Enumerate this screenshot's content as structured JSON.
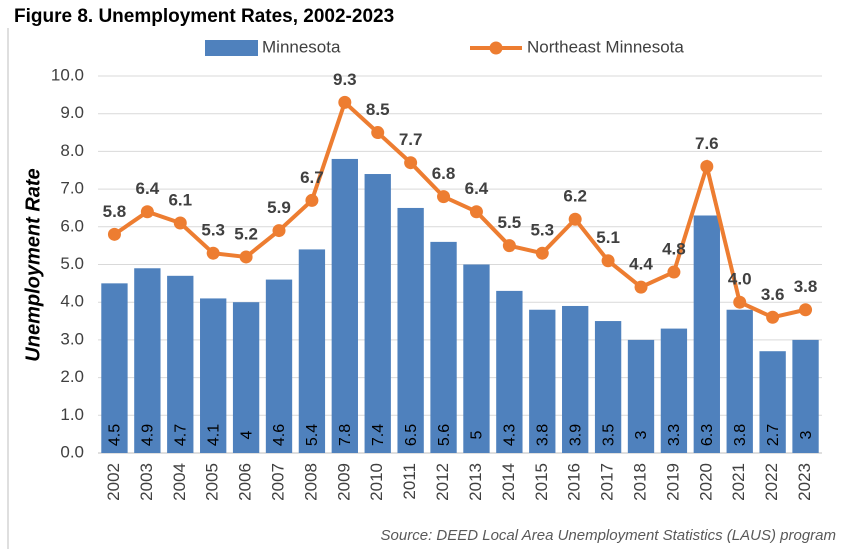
{
  "chart_data": {
    "type": "bar_line",
    "title": "Figure 8. Unemployment Rates, 2002-2023",
    "y_label": "Unemployment Rate",
    "source": "Source: DEED Local Area Unemployment Statistics (LAUS) program",
    "categories": [
      "2002",
      "2003",
      "2004",
      "2005",
      "2006",
      "2007",
      "2008",
      "2009",
      "2010",
      "2011",
      "2012",
      "2013",
      "2014",
      "2015",
      "2016",
      "2017",
      "2018",
      "2019",
      "2020",
      "2021",
      "2022",
      "2023"
    ],
    "series": [
      {
        "name": "Minnesota",
        "type": "bar",
        "color": "#4f81bd",
        "values": [
          4.5,
          4.9,
          4.7,
          4.1,
          4,
          4.6,
          5.4,
          7.8,
          7.4,
          6.5,
          5.6,
          5,
          4.3,
          3.8,
          3.9,
          3.5,
          3,
          3.3,
          6.3,
          3.8,
          2.7,
          3
        ]
      },
      {
        "name": "Northeast Minnesota",
        "type": "line",
        "color": "#ed7d31",
        "label_color": "#c55a11",
        "values": [
          5.8,
          6.4,
          6.1,
          5.3,
          5.2,
          5.9,
          6.7,
          9.3,
          8.5,
          7.7,
          6.8,
          6.4,
          5.5,
          5.3,
          6.2,
          5.1,
          4.4,
          4.8,
          7.6,
          4.0,
          3.6,
          3.8
        ],
        "value_labels": [
          "5.8",
          "6.4",
          "6.1",
          "5.3",
          "5.2",
          "5.9",
          "6.7",
          "9.3",
          "8.5",
          "7.7",
          "6.8",
          "6.4",
          "5.5",
          "5.3",
          "6.2",
          "5.1",
          "4.4",
          "4.8",
          "7.6",
          "4.0",
          "3.6",
          "3.8"
        ]
      }
    ],
    "ylim": [
      0,
      10
    ],
    "yticks": [
      {
        "value": 0,
        "label": "0.0"
      },
      {
        "value": 1,
        "label": "1.0"
      },
      {
        "value": 2,
        "label": "2.0"
      },
      {
        "value": 3,
        "label": "3.0"
      },
      {
        "value": 4,
        "label": "4.0"
      },
      {
        "value": 5,
        "label": "5.0"
      },
      {
        "value": 6,
        "label": "6.0"
      },
      {
        "value": 7,
        "label": "7.0"
      },
      {
        "value": 8,
        "label": "8.0"
      },
      {
        "value": 9,
        "label": "9.0"
      },
      {
        "value": 10,
        "label": "10.0"
      }
    ],
    "grid": true
  }
}
